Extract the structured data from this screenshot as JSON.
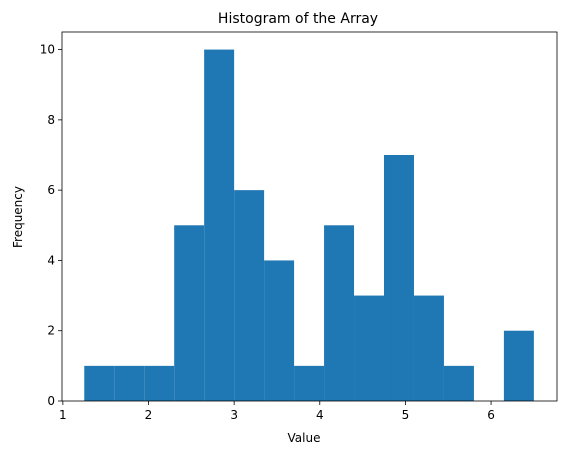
{
  "chart_data": {
    "type": "bar",
    "title": "Histogram of the Array",
    "xlabel": "Value",
    "ylabel": "Frequency",
    "xlim": [
      0.99,
      6.77
    ],
    "ylim": [
      0,
      10.5
    ],
    "x_ticks": [
      1,
      2,
      3,
      4,
      5,
      6
    ],
    "y_ticks": [
      0,
      2,
      4,
      6,
      8,
      10
    ],
    "grid": false,
    "bar_color": "#1f77b4",
    "bins": [
      {
        "x0": 1.25,
        "x1": 1.6,
        "count": 1
      },
      {
        "x0": 1.6,
        "x1": 1.95,
        "count": 1
      },
      {
        "x0": 1.95,
        "x1": 2.3,
        "count": 1
      },
      {
        "x0": 2.3,
        "x1": 2.65,
        "count": 5
      },
      {
        "x0": 2.65,
        "x1": 3.0,
        "count": 10
      },
      {
        "x0": 3.0,
        "x1": 3.35,
        "count": 6
      },
      {
        "x0": 3.35,
        "x1": 3.7,
        "count": 4
      },
      {
        "x0": 3.7,
        "x1": 4.05,
        "count": 1
      },
      {
        "x0": 4.05,
        "x1": 4.4,
        "count": 5
      },
      {
        "x0": 4.4,
        "x1": 4.75,
        "count": 3
      },
      {
        "x0": 4.75,
        "x1": 5.1,
        "count": 7
      },
      {
        "x0": 5.1,
        "x1": 5.45,
        "count": 3
      },
      {
        "x0": 5.45,
        "x1": 5.8,
        "count": 1
      },
      {
        "x0": 5.8,
        "x1": 6.15,
        "count": 0
      },
      {
        "x0": 6.15,
        "x1": 6.5,
        "count": 2
      }
    ]
  }
}
